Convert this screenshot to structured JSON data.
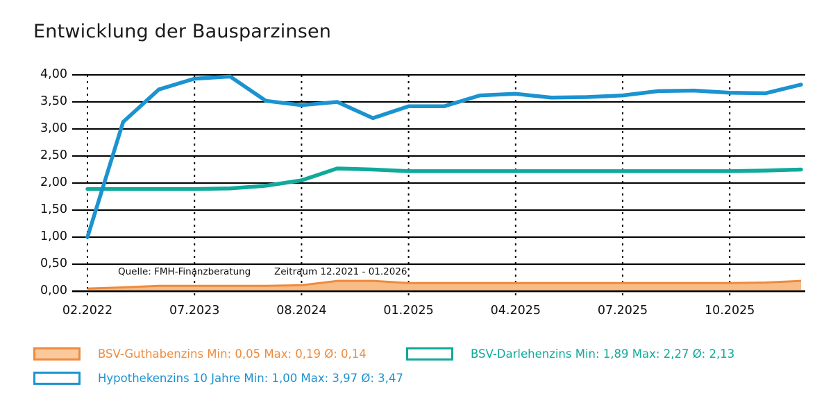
{
  "title": "Entwicklung der Bausparzinsen",
  "annotation": {
    "source": "Quelle: FMH-Finanzberatung",
    "period": "Zeitraum 12.2021 - 01.2026"
  },
  "colors": {
    "hypothek_blue": "#1b93d1",
    "darlehen_teal": "#10a99a",
    "guthaben_orange": "#ee8a3b",
    "guthaben_fill": "#f8bc86",
    "guthaben_legend_fill": "#fac99c",
    "grid": "#000000",
    "text": "#111111"
  },
  "chart_data": {
    "type": "line",
    "title": "Entwicklung der Bausparzinsen",
    "xlabel": "",
    "ylabel": "",
    "ylim": [
      0,
      4
    ],
    "grid": true,
    "legend_position": "bottom",
    "y_ticks": [
      {
        "v": 4.0,
        "label": "4,00"
      },
      {
        "v": 3.5,
        "label": "3,50"
      },
      {
        "v": 3.0,
        "label": "3,00"
      },
      {
        "v": 2.5,
        "label": "2,50"
      },
      {
        "v": 2.0,
        "label": "2,00"
      },
      {
        "v": 1.5,
        "label": "1,50"
      },
      {
        "v": 1.0,
        "label": "1,00"
      },
      {
        "v": 0.5,
        "label": "0,50"
      },
      {
        "v": 0.0,
        "label": "0,00"
      }
    ],
    "x_ticks": [
      {
        "i": 0,
        "label": "02.2022"
      },
      {
        "i": 3,
        "label": "07.2023"
      },
      {
        "i": 6,
        "label": "08.2024"
      },
      {
        "i": 9,
        "label": "01.2025"
      },
      {
        "i": 12,
        "label": "04.2025"
      },
      {
        "i": 15,
        "label": "07.2025"
      },
      {
        "i": 18,
        "label": "10.2025"
      }
    ],
    "n_points": 21,
    "series": [
      {
        "name": "BSV-Guthabenzins",
        "style": "area",
        "stroke": "#ee8a3b",
        "fill": "#f8bc86",
        "min": "0,05",
        "max": "0,19",
        "avg": "0,14",
        "values": [
          0.05,
          0.07,
          0.1,
          0.1,
          0.1,
          0.1,
          0.11,
          0.19,
          0.19,
          0.15,
          0.15,
          0.15,
          0.15,
          0.15,
          0.15,
          0.15,
          0.15,
          0.15,
          0.15,
          0.16,
          0.19
        ]
      },
      {
        "name": "BSV-Darlehenzins",
        "style": "line",
        "stroke": "#10a99a",
        "min": "1,89",
        "max": "2,27",
        "avg": "2,13",
        "values": [
          1.89,
          1.89,
          1.89,
          1.89,
          1.9,
          1.95,
          2.05,
          2.27,
          2.25,
          2.22,
          2.22,
          2.22,
          2.22,
          2.22,
          2.22,
          2.22,
          2.22,
          2.22,
          2.22,
          2.23,
          2.25
        ]
      },
      {
        "name": "Hypothekenzins 10 Jahre",
        "style": "line",
        "stroke": "#1b93d1",
        "min": "1,00",
        "max": "3,97",
        "avg": "3,47",
        "values": [
          1.0,
          3.13,
          3.73,
          3.93,
          3.97,
          3.52,
          3.44,
          3.5,
          3.2,
          3.42,
          3.42,
          3.62,
          3.65,
          3.58,
          3.59,
          3.62,
          3.7,
          3.71,
          3.67,
          3.66,
          3.82
        ]
      }
    ]
  },
  "legend": [
    {
      "label": "BSV-Guthabenzins Min: 0,05 Max: 0,19 Ø: 0,14",
      "text_color": "#ef8b3d",
      "border": "#ef8b3d",
      "fill": "#fac99c"
    },
    {
      "label": "BSV-Darlehenzins Min: 1,89 Max: 2,27 Ø: 2,13",
      "text_color": "#10a99a",
      "border": "#10a99a",
      "fill": "#ffffff"
    },
    {
      "label": "Hypothekenzins 10 Jahre Min: 1,00 Max: 3,97 Ø: 3,47",
      "text_color": "#1b93d1",
      "border": "#1b93d1",
      "fill": "#ffffff"
    }
  ]
}
